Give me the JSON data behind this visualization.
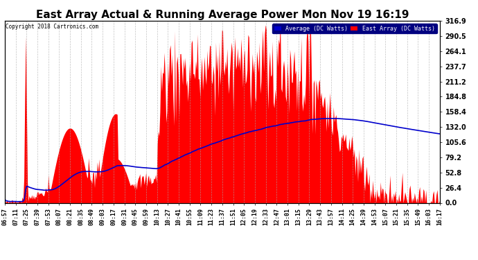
{
  "title": "East Array Actual & Running Average Power Mon Nov 19 16:19",
  "copyright": "Copyright 2018 Cartronics.com",
  "legend_labels": [
    "Average (DC Watts)",
    "East Array (DC Watts)"
  ],
  "legend_colors": [
    "#0000cc",
    "#ff0000"
  ],
  "ylabel_right_values": [
    316.9,
    290.5,
    264.1,
    237.7,
    211.2,
    184.8,
    158.4,
    132.0,
    105.6,
    79.2,
    52.8,
    26.4,
    0.0
  ],
  "ylim": [
    0,
    316.9
  ],
  "background_color": "#ffffff",
  "plot_bg_color": "#ffffff",
  "fill_color": "#ff0000",
  "avg_line_color": "#0000cc",
  "grid_color": "#aaaaaa",
  "title_fontsize": 11,
  "tick_fontsize": 6,
  "x_tick_labels": [
    "06:57",
    "07:11",
    "07:25",
    "07:39",
    "07:53",
    "08:07",
    "08:21",
    "08:35",
    "08:49",
    "09:03",
    "09:17",
    "09:31",
    "09:45",
    "09:59",
    "10:13",
    "10:27",
    "10:41",
    "10:55",
    "11:09",
    "11:23",
    "11:37",
    "11:51",
    "12:05",
    "12:19",
    "12:33",
    "12:47",
    "13:01",
    "13:15",
    "13:29",
    "13:43",
    "13:57",
    "14:11",
    "14:25",
    "14:39",
    "14:53",
    "15:07",
    "15:21",
    "15:35",
    "15:49",
    "16:03",
    "16:17"
  ]
}
